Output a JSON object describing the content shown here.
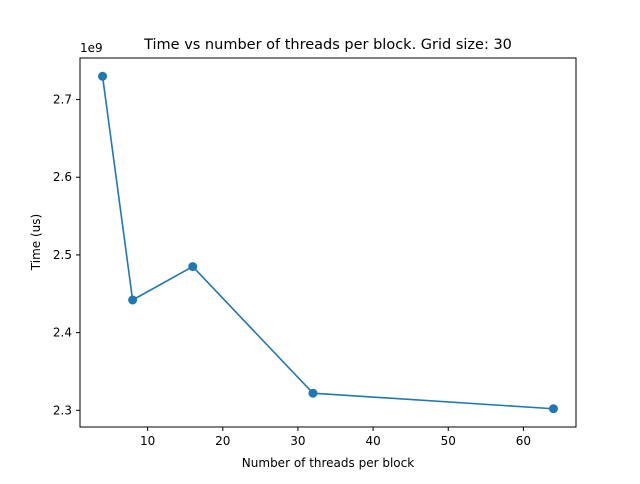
{
  "chart_data": {
    "type": "line",
    "title": "Time vs number of threads per block. Grid size: 30",
    "xlabel": "Number of threads per block",
    "ylabel": "Time (us)",
    "y_offset_label": "1e9",
    "y_scale_factor": 1000000000,
    "x": [
      4,
      8,
      16,
      32,
      64
    ],
    "series": [
      {
        "values": [
          2730000000,
          2442000000,
          2485000000,
          2322000000,
          2302000000
        ],
        "color": "#1f77b4",
        "marker": "circle"
      }
    ],
    "xlim": [
      1,
      67
    ],
    "ylim": [
      2.2785,
      2.7535
    ],
    "x_ticks": [
      {
        "value": 10,
        "label": "10"
      },
      {
        "value": 20,
        "label": "20"
      },
      {
        "value": 30,
        "label": "30"
      },
      {
        "value": 40,
        "label": "40"
      },
      {
        "value": 50,
        "label": "50"
      },
      {
        "value": 60,
        "label": "60"
      }
    ],
    "y_ticks": [
      {
        "value": 2.3,
        "label": "2.3"
      },
      {
        "value": 2.4,
        "label": "2.4"
      },
      {
        "value": 2.5,
        "label": "2.5"
      },
      {
        "value": 2.6,
        "label": "2.6"
      },
      {
        "value": 2.7,
        "label": "2.7"
      }
    ],
    "grid": false,
    "legend": "none"
  }
}
